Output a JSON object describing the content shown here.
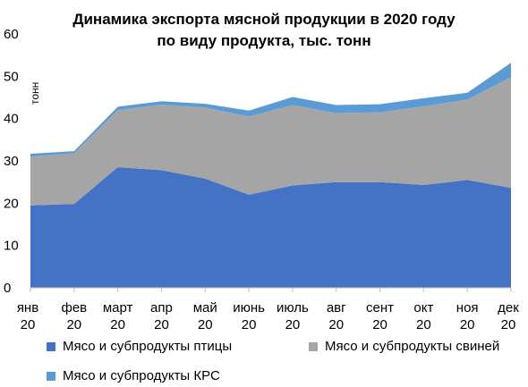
{
  "chart_data": {
    "type": "area",
    "stacked": true,
    "title_lines": [
      "Динамика экспорта мясной продукции в 2020 году",
      "по виду продукта, тыс. тонн"
    ],
    "ylabel": "тонн",
    "ylim": [
      0,
      60
    ],
    "yticks": [
      0,
      10,
      20,
      30,
      40,
      50,
      60
    ],
    "grid": false,
    "legend_position": "bottom",
    "categories": [
      [
        "янв",
        "20"
      ],
      [
        "фев",
        "20"
      ],
      [
        "март",
        "20"
      ],
      [
        "апр",
        "20"
      ],
      [
        "май",
        "20"
      ],
      [
        "июнь",
        "20"
      ],
      [
        "июль",
        "20"
      ],
      [
        "авг",
        "20"
      ],
      [
        "сент",
        "20"
      ],
      [
        "окт",
        "20"
      ],
      [
        "ноя",
        "20"
      ],
      [
        "дек",
        "20"
      ]
    ],
    "series": [
      {
        "name": "Мясо и субпродукты птицы",
        "color": "#4472C4",
        "values": [
          19.5,
          19.8,
          28.5,
          27.8,
          25.8,
          22.0,
          24.2,
          25.0,
          25.0,
          24.3,
          25.5,
          23.6
        ]
      },
      {
        "name": "Мясо и субпродукты свиней",
        "color": "#A5A5A5",
        "values": [
          11.5,
          12.0,
          13.5,
          15.5,
          16.8,
          18.5,
          19.0,
          16.3,
          16.5,
          18.6,
          19.0,
          26.2
        ]
      },
      {
        "name": "Мясо и субпродукты КРС",
        "color": "#5B9BD5",
        "values": [
          0.7,
          0.5,
          0.8,
          0.8,
          0.9,
          1.4,
          1.9,
          1.9,
          1.9,
          1.9,
          1.6,
          3.4
        ]
      }
    ]
  }
}
